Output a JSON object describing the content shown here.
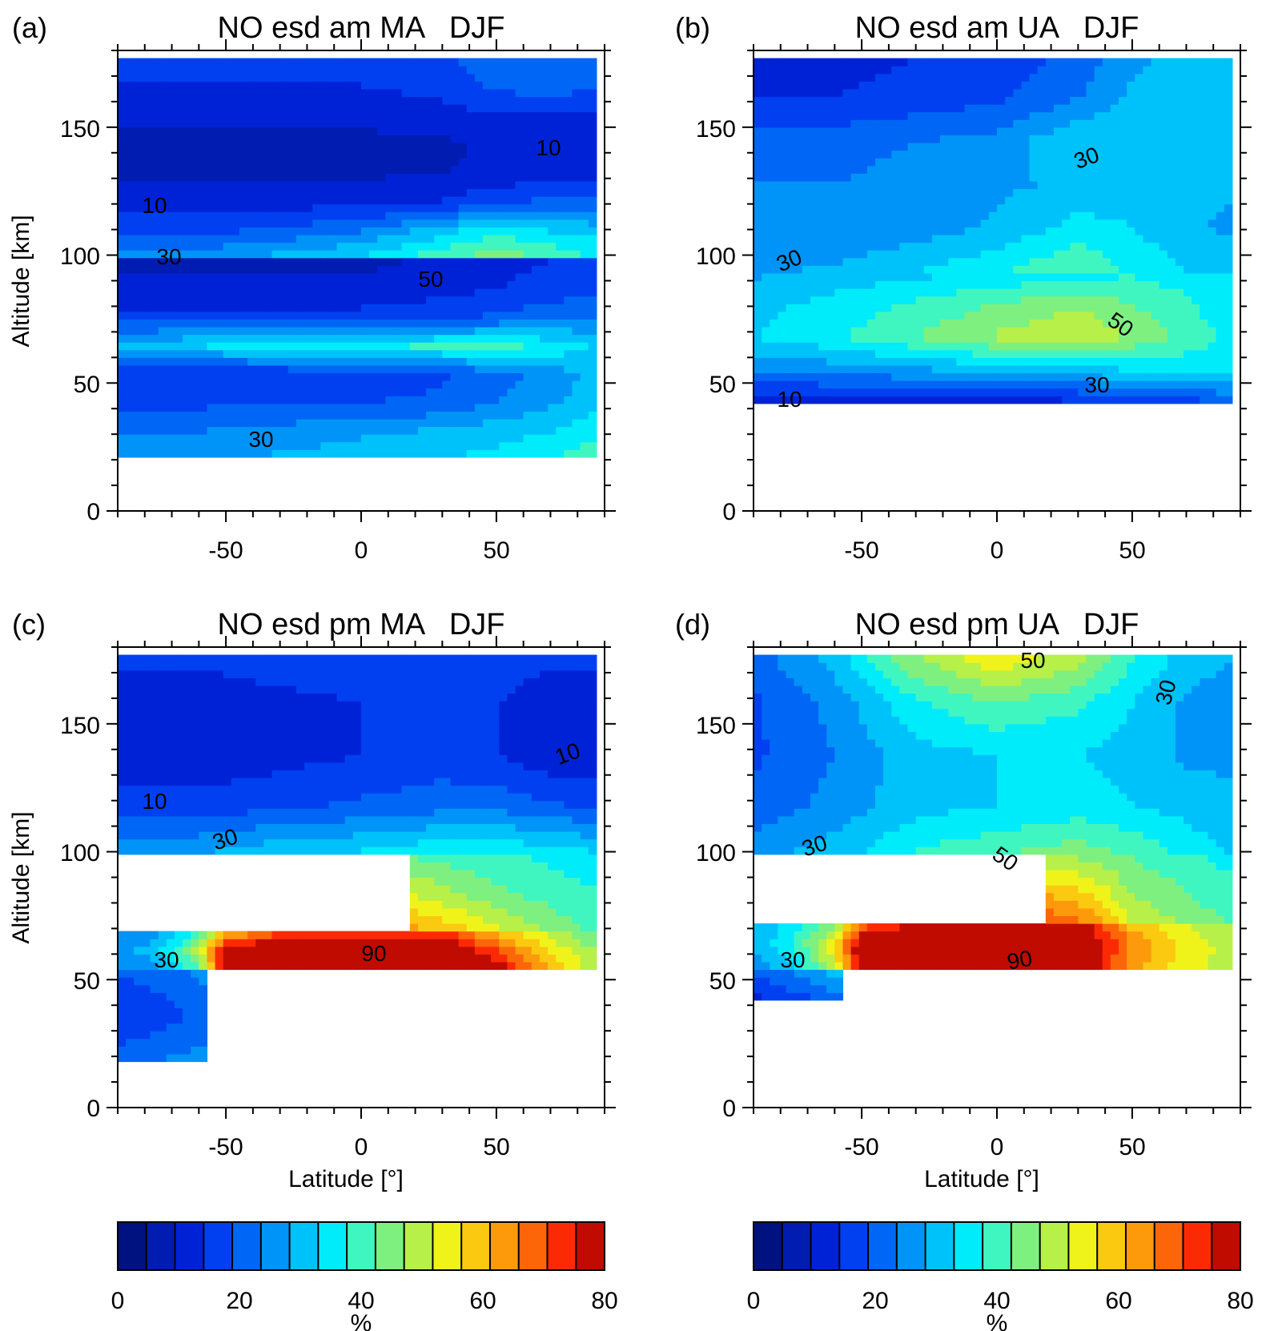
{
  "colorbar_colors": [
    "#00127f",
    "#001cb1",
    "#0022d6",
    "#0040f0",
    "#0066f5",
    "#0094f8",
    "#00c2fa",
    "#00ecfb",
    "#40f6c0",
    "#7ef080",
    "#b7f048",
    "#f0f31a",
    "#fbc910",
    "#fc9a0c",
    "#fc6608",
    "#fb2a04",
    "#c00b00"
  ],
  "chart_data": [
    {
      "type": "heatmap",
      "panel": "(a)",
      "title": "NO esd am MA   DJF",
      "xlabel": "",
      "ylabel": "Altitude [km]",
      "xlim": [
        -90,
        90
      ],
      "ylim": [
        0,
        180
      ],
      "xticks": [
        "-50",
        "0",
        "50"
      ],
      "yticks": [
        "0",
        "50",
        "100",
        "150"
      ],
      "bands": [
        {
          "zmin": 20,
          "zmax": 98,
          "x": [
            -90,
            -60,
            -30,
            0,
            30,
            50,
            70,
            85
          ],
          "z": [
            [
              22,
              24,
              26,
              28,
              30,
              32,
              35,
              38
            ],
            [
              20,
              20,
              22,
              24,
              26,
              28,
              30,
              33
            ],
            [
              14,
              14,
              14,
              15,
              16,
              20,
              24,
              28
            ],
            [
              10,
              10,
              11,
              12,
              14,
              18,
              22,
              26
            ],
            [
              28,
              30,
              32,
              34,
              36,
              36,
              34,
              30
            ],
            [
              12,
              12,
              12,
              12,
              14,
              16,
              18,
              20
            ],
            [
              6,
              6,
              6,
              6,
              8,
              10,
              12,
              14
            ],
            [
              4,
              4,
              4,
              4,
              6,
              8,
              10,
              10
            ]
          ]
        },
        {
          "zmin": 98,
          "zmax": 178,
          "x": [
            -90,
            -60,
            -30,
            0,
            30,
            50,
            70,
            85
          ],
          "z": [
            [
              22,
              24,
              28,
              32,
              40,
              44,
              40,
              36
            ],
            [
              14,
              14,
              16,
              20,
              28,
              34,
              30,
              28
            ],
            [
              8,
              8,
              8,
              8,
              10,
              14,
              16,
              16
            ],
            [
              4,
              4,
              4,
              4,
              5,
              6,
              8,
              8
            ],
            [
              4,
              4,
              4,
              4,
              4,
              6,
              8,
              8
            ],
            [
              6,
              6,
              6,
              6,
              8,
              10,
              10,
              10
            ],
            [
              10,
              10,
              10,
              10,
              12,
              16,
              18,
              16
            ],
            [
              12,
              12,
              12,
              12,
              14,
              18,
              20,
              18
            ]
          ]
        },
        {
          "zmin": 55,
          "zmax": 68,
          "x": [
            -90,
            -60,
            -30,
            0,
            30,
            50,
            70,
            85
          ],
          "z": [
            [
              24,
              30,
              44,
              56,
              62,
              52,
              42,
              34
            ],
            [
              26,
              36,
              50,
              62,
              66,
              56,
              44,
              36
            ],
            [
              24,
              32,
              46,
              58,
              64,
              54,
              42,
              34
            ]
          ]
        },
        {
          "zmin": 68,
          "zmax": 92,
          "x": [
            30,
            40,
            50,
            60,
            70,
            85
          ],
          "z": [
            [
              60,
              56,
              50,
              42,
              38,
              36
            ],
            [
              56,
              50,
              44,
              38,
              34,
              32
            ],
            [
              50,
              44,
              38,
              34,
              30,
              28
            ],
            [
              44,
              40,
              36,
              32,
              28,
              26
            ]
          ]
        }
      ],
      "contour_labels": [
        "10",
        "10",
        "30",
        "50",
        "30"
      ]
    },
    {
      "type": "heatmap",
      "panel": "(b)",
      "title": "NO esd am UA   DJF",
      "xlabel": "",
      "ylabel": "",
      "xlim": [
        -90,
        90
      ],
      "ylim": [
        0,
        180
      ],
      "xticks": [
        "-50",
        "0",
        "50"
      ],
      "yticks": [
        "0",
        "50",
        "100",
        "150"
      ],
      "bands": [
        {
          "zmin": 42,
          "zmax": 94,
          "x": [
            -90,
            -60,
            -30,
            0,
            30,
            50,
            70,
            85
          ],
          "z": [
            [
              6,
              6,
              6,
              6,
              8,
              10,
              12,
              14
            ],
            [
              20,
              22,
              24,
              26,
              28,
              30,
              32,
              32
            ],
            [
              30,
              34,
              40,
              46,
              50,
              44,
              38,
              34
            ],
            [
              28,
              32,
              36,
              40,
              44,
              40,
              36,
              32
            ],
            [
              24,
              26,
              28,
              30,
              32,
              34,
              32,
              30
            ]
          ]
        },
        {
          "zmin": 94,
          "zmax": 178,
          "x": [
            -90,
            -60,
            -30,
            0,
            30,
            50,
            70,
            85
          ],
          "z": [
            [
              24,
              26,
              30,
              34,
              40,
              34,
              30,
              28
            ],
            [
              20,
              20,
              22,
              26,
              32,
              30,
              26,
              24
            ],
            [
              20,
              20,
              22,
              24,
              26,
              28,
              26,
              26
            ],
            [
              18,
              18,
              20,
              22,
              30,
              28,
              26,
              26
            ],
            [
              10,
              10,
              12,
              14,
              20,
              26,
              26,
              26
            ],
            [
              8,
              8,
              10,
              12,
              16,
              24,
              26,
              28
            ]
          ]
        },
        {
          "zmin": 60,
          "zmax": 72,
          "x": [
            -90,
            -60,
            -30,
            0,
            30,
            50,
            70,
            85
          ],
          "z": [
            [
              36,
              42,
              52,
              60,
              62,
              52,
              42,
              36
            ],
            [
              34,
              40,
              48,
              56,
              58,
              50,
              40,
              34
            ]
          ]
        }
      ],
      "contour_labels": [
        "30",
        "30",
        "50",
        "30",
        "10"
      ]
    },
    {
      "type": "heatmap",
      "panel": "(c)",
      "title": "NO esd pm MA   DJF",
      "xlabel": "Latitude [°]",
      "ylabel": "Altitude [km]",
      "xlim": [
        -90,
        90
      ],
      "ylim": [
        0,
        180
      ],
      "xticks": [
        "-50",
        "0",
        "50"
      ],
      "yticks": [
        "0",
        "50",
        "100",
        "150"
      ],
      "bands": [
        {
          "zmin": 18,
          "zmax": 55,
          "x": [
            -90,
            -75,
            -60
          ],
          "z": [
            [
              18,
              20,
              22
            ],
            [
              10,
              12,
              16
            ],
            [
              16,
              18,
              22
            ]
          ]
        },
        {
          "zmin": 55,
          "zmax": 68,
          "x": [
            -90,
            -75,
            -60,
            -50,
            -30,
            0,
            30,
            50,
            70,
            85
          ],
          "z": [
            [
              20,
              24,
              40,
              80,
              82,
              82,
              82,
              78,
              60,
              48
            ],
            [
              22,
              28,
              48,
              82,
              84,
              84,
              84,
              70,
              55,
              45
            ],
            [
              20,
              24,
              36,
              60,
              70,
              72,
              72,
              60,
              48,
              42
            ]
          ]
        },
        {
          "zmin": 68,
          "zmax": 98,
          "x": [
            20,
            35,
            50,
            70,
            85
          ],
          "z": [
            [
              62,
              58,
              52,
              44,
              40
            ],
            [
              50,
              46,
              42,
              38,
              36
            ],
            [
              40,
              38,
              36,
              34,
              32
            ]
          ]
        },
        {
          "zmin": 98,
          "zmax": 178,
          "x": [
            -90,
            -60,
            -30,
            0,
            30,
            50,
            70,
            85
          ],
          "z": [
            [
              24,
              26,
              30,
              32,
              36,
              36,
              34,
              32
            ],
            [
              12,
              12,
              14,
              16,
              18,
              18,
              16,
              14
            ],
            [
              6,
              6,
              8,
              10,
              12,
              10,
              6,
              6
            ],
            [
              6,
              6,
              8,
              10,
              12,
              10,
              6,
              6
            ],
            [
              12,
              12,
              14,
              14,
              14,
              14,
              12,
              12
            ]
          ]
        }
      ],
      "contour_labels": [
        "10",
        "10",
        "30",
        "30",
        "90"
      ]
    },
    {
      "type": "heatmap",
      "panel": "(d)",
      "title": "NO esd pm UA   DJF",
      "xlabel": "Latitude [°]",
      "ylabel": "",
      "xlim": [
        -90,
        90
      ],
      "ylim": [
        0,
        180
      ],
      "xticks": [
        "-50",
        "0",
        "50"
      ],
      "yticks": [
        "0",
        "50",
        "100",
        "150"
      ],
      "bands": [
        {
          "zmin": 42,
          "zmax": 55,
          "x": [
            -90,
            -75,
            -60
          ],
          "z": [
            [
              8,
              12,
              18
            ],
            [
              18,
              22,
              28
            ]
          ]
        },
        {
          "zmin": 55,
          "zmax": 72,
          "x": [
            -90,
            -75,
            -60,
            -50,
            -30,
            0,
            30,
            50,
            70,
            85
          ],
          "z": [
            [
              22,
              30,
              48,
              80,
              84,
              84,
              84,
              62,
              52,
              48
            ],
            [
              26,
              36,
              54,
              84,
              86,
              86,
              86,
              64,
              54,
              48
            ],
            [
              24,
              32,
              44,
              66,
              76,
              80,
              80,
              58,
              50,
              46
            ]
          ]
        },
        {
          "zmin": 72,
          "zmax": 98,
          "x": [
            20,
            35,
            50,
            70,
            85
          ],
          "z": [
            [
              70,
              64,
              50,
              44,
              40
            ],
            [
              58,
              54,
              44,
              40,
              36
            ],
            [
              46,
              44,
              40,
              36,
              34
            ]
          ]
        },
        {
          "zmin": 98,
          "zmax": 178,
          "x": [
            -90,
            -60,
            -30,
            0,
            30,
            50,
            70,
            85
          ],
          "z": [
            [
              24,
              28,
              36,
              40,
              44,
              40,
              34,
              30
            ],
            [
              16,
              22,
              28,
              30,
              32,
              30,
              28,
              26
            ],
            [
              14,
              20,
              28,
              30,
              30,
              28,
              24,
              24
            ],
            [
              14,
              22,
              34,
              40,
              36,
              30,
              24,
              22
            ],
            [
              18,
              28,
              46,
              56,
              48,
              36,
              28,
              26
            ]
          ]
        }
      ],
      "contour_labels": [
        "50",
        "30",
        "30",
        "50",
        "30",
        "90"
      ]
    }
  ],
  "colorbars": [
    {
      "ticks": [
        "0",
        "20",
        "40",
        "60",
        "80"
      ],
      "label": "%"
    },
    {
      "ticks": [
        "0",
        "20",
        "40",
        "60",
        "80"
      ],
      "label": "%"
    }
  ]
}
